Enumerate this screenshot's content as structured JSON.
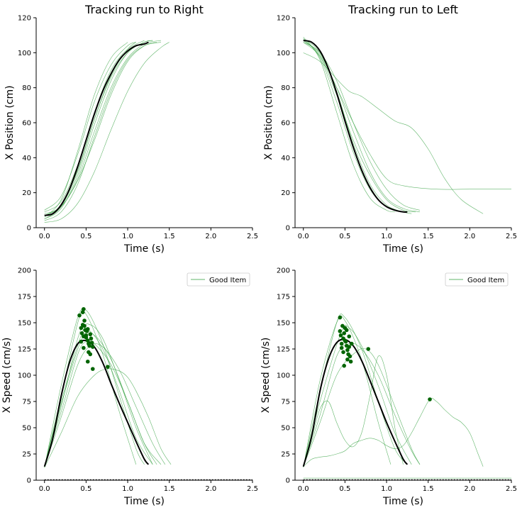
{
  "colors": {
    "trial_line": "#2e9e3a",
    "mean_line": "#000000",
    "peak_marker": "#006400",
    "baseline": "#000000"
  },
  "chart_data": [
    {
      "type": "line",
      "title": "Tracking run to Right",
      "xlabel": "Time (s)",
      "ylabel": "X Position (cm)",
      "xlim": [
        -0.1,
        2.5
      ],
      "ylim": [
        0,
        120
      ],
      "xticks": [
        "0.0",
        "0.5",
        "1.0",
        "1.5",
        "2.0",
        "2.5"
      ],
      "yticks": [
        "0",
        "20",
        "40",
        "60",
        "80",
        "100",
        "120"
      ],
      "grid": false,
      "legend": null,
      "series": [
        {
          "role": "trial",
          "x": [
            0.0,
            0.2,
            0.4,
            0.6,
            0.8,
            1.0,
            1.1
          ],
          "y": [
            5,
            12,
            32,
            62,
            87,
            102,
            106
          ]
        },
        {
          "role": "trial",
          "x": [
            0.0,
            0.2,
            0.4,
            0.6,
            0.8,
            1.0,
            1.2,
            1.3
          ],
          "y": [
            7,
            13,
            33,
            62,
            86,
            100,
            106,
            107
          ]
        },
        {
          "role": "trial",
          "x": [
            0.0,
            0.2,
            0.4,
            0.6,
            0.8,
            1.0,
            1.2,
            1.4
          ],
          "y": [
            8,
            12,
            28,
            55,
            80,
            97,
            105,
            107
          ]
        },
        {
          "role": "trial",
          "x": [
            0.0,
            0.2,
            0.4,
            0.6,
            0.8,
            1.0,
            1.1
          ],
          "y": [
            10,
            18,
            42,
            72,
            93,
            104,
            106
          ]
        },
        {
          "role": "trial",
          "x": [
            0.0,
            0.2,
            0.4,
            0.6,
            0.8,
            1.0
          ],
          "y": [
            6,
            16,
            44,
            76,
            97,
            106
          ]
        },
        {
          "role": "trial",
          "x": [
            0.0,
            0.2,
            0.4,
            0.6,
            0.8,
            1.0,
            1.2,
            1.4
          ],
          "y": [
            4,
            9,
            25,
            52,
            78,
            96,
            104,
            106
          ]
        },
        {
          "role": "trial",
          "x": [
            0.0,
            0.2,
            0.4,
            0.6,
            0.8,
            1.0,
            1.2,
            1.4,
            1.5
          ],
          "y": [
            3,
            5,
            14,
            32,
            56,
            78,
            94,
            103,
            106
          ]
        },
        {
          "role": "trial",
          "x": [
            0.0,
            0.2,
            0.4,
            0.6,
            0.8,
            1.0,
            1.2
          ],
          "y": [
            9,
            15,
            36,
            66,
            90,
            102,
            107
          ]
        },
        {
          "role": "trial",
          "x": [
            0.0,
            0.2,
            0.4,
            0.6,
            0.8,
            1.0,
            1.2,
            1.3
          ],
          "y": [
            5,
            11,
            30,
            59,
            84,
            100,
            106,
            107
          ]
        },
        {
          "role": "trial",
          "x": [
            0.0,
            0.2,
            0.4,
            0.6,
            0.8,
            1.0,
            1.2,
            1.35
          ],
          "y": [
            7,
            12,
            27,
            50,
            76,
            95,
            104,
            106
          ]
        },
        {
          "role": "mean",
          "x": [
            0.0,
            0.1,
            0.2,
            0.3,
            0.4,
            0.5,
            0.6,
            0.7,
            0.8,
            0.9,
            1.0,
            1.1,
            1.2,
            1.25
          ],
          "y": [
            7,
            8,
            13,
            22,
            35,
            50,
            65,
            78,
            88,
            96,
            101,
            104,
            105,
            106
          ]
        }
      ]
    },
    {
      "type": "line",
      "title": "Tracking run to Left",
      "xlabel": "Time (s)",
      "ylabel": "X Position (cm)",
      "xlim": [
        -0.1,
        2.5
      ],
      "ylim": [
        0,
        120
      ],
      "xticks": [
        "0.0",
        "0.5",
        "1.0",
        "1.5",
        "2.0",
        "2.5"
      ],
      "yticks": [
        "0",
        "20",
        "40",
        "60",
        "80",
        "100",
        "120"
      ],
      "grid": false,
      "legend": null,
      "series": [
        {
          "role": "trial",
          "x": [
            0.0,
            0.2,
            0.4,
            0.6,
            0.8,
            1.0,
            1.2,
            1.3
          ],
          "y": [
            108,
            100,
            78,
            48,
            25,
            13,
            9,
            8
          ]
        },
        {
          "role": "trial",
          "x": [
            0.0,
            0.2,
            0.4,
            0.6,
            0.8,
            1.0,
            1.2,
            1.4
          ],
          "y": [
            107,
            99,
            80,
            55,
            32,
            17,
            11,
            9
          ]
        },
        {
          "role": "trial",
          "x": [
            0.0,
            0.2,
            0.4,
            0.6,
            0.8,
            1.0,
            1.2
          ],
          "y": [
            108,
            97,
            72,
            43,
            22,
            12,
            9
          ]
        },
        {
          "role": "trial",
          "x": [
            0.0,
            0.2,
            0.4,
            0.6,
            0.8,
            1.0,
            1.2,
            1.4
          ],
          "y": [
            106,
            100,
            84,
            60,
            38,
            22,
            13,
            10
          ]
        },
        {
          "role": "trial",
          "x": [
            0.0,
            0.2,
            0.4,
            0.6,
            0.8,
            1.0,
            1.1
          ],
          "y": [
            109,
            96,
            66,
            36,
            17,
            10,
            9
          ]
        },
        {
          "role": "trial",
          "x": [
            0.0,
            0.2,
            0.4,
            0.6,
            0.8,
            1.0,
            1.2,
            1.35
          ],
          "y": [
            107,
            98,
            76,
            50,
            30,
            16,
            10,
            9
          ]
        },
        {
          "role": "trial",
          "x": [
            0.0,
            0.2,
            0.4,
            0.6,
            0.8,
            1.0,
            1.2,
            1.6,
            2.0,
            2.5
          ],
          "y": [
            106,
            98,
            80,
            60,
            42,
            28,
            24,
            22,
            22,
            22
          ]
        },
        {
          "role": "trial",
          "x": [
            0.0,
            0.2,
            0.4,
            0.55,
            0.7,
            0.9,
            1.1,
            1.3,
            1.5,
            1.7,
            1.9,
            2.16
          ],
          "y": [
            100,
            95,
            85,
            78,
            75,
            68,
            61,
            57,
            45,
            28,
            16,
            8
          ]
        },
        {
          "role": "mean",
          "x": [
            0.0,
            0.1,
            0.2,
            0.3,
            0.4,
            0.5,
            0.6,
            0.7,
            0.8,
            0.9,
            1.0,
            1.1,
            1.2,
            1.25
          ],
          "y": [
            107,
            106,
            101,
            91,
            77,
            61,
            46,
            33,
            23,
            16,
            12,
            10,
            9,
            9
          ]
        }
      ]
    },
    {
      "type": "line",
      "title": "",
      "xlabel": "Time (s)",
      "ylabel": "X Speed (cm/s)",
      "xlim": [
        -0.1,
        2.5
      ],
      "ylim": [
        0,
        200
      ],
      "xticks": [
        "0.0",
        "0.5",
        "1.0",
        "1.5",
        "2.0",
        "2.5"
      ],
      "yticks": [
        "0",
        "25",
        "50",
        "75",
        "100",
        "125",
        "150",
        "175",
        "200"
      ],
      "grid": false,
      "legend": {
        "placement": "top-right",
        "entries": [
          "Good Item"
        ]
      },
      "series": [
        {
          "role": "trial",
          "x": [
            0.0,
            0.2,
            0.4,
            0.5,
            0.7,
            0.9,
            1.1,
            1.2
          ],
          "y": [
            13,
            80,
            150,
            162,
            130,
            80,
            30,
            15
          ]
        },
        {
          "role": "trial",
          "x": [
            0.0,
            0.2,
            0.4,
            0.5,
            0.7,
            0.9,
            1.1,
            1.3
          ],
          "y": [
            13,
            70,
            135,
            145,
            125,
            85,
            40,
            15
          ]
        },
        {
          "role": "trial",
          "x": [
            0.0,
            0.2,
            0.4,
            0.5,
            0.6,
            0.8,
            1.0,
            1.2,
            1.4
          ],
          "y": [
            14,
            65,
            120,
            132,
            130,
            110,
            75,
            35,
            15
          ]
        },
        {
          "role": "trial",
          "x": [
            0.0,
            0.2,
            0.45,
            0.55,
            0.7,
            0.9,
            1.1,
            1.3
          ],
          "y": [
            13,
            75,
            140,
            148,
            135,
            95,
            50,
            15
          ]
        },
        {
          "role": "trial",
          "x": [
            0.0,
            0.2,
            0.4,
            0.5,
            0.7,
            0.9,
            1.1
          ],
          "y": [
            12,
            90,
            155,
            158,
            120,
            65,
            15
          ]
        },
        {
          "role": "trial",
          "x": [
            0.0,
            0.2,
            0.4,
            0.55,
            0.7,
            0.9,
            1.1,
            1.3,
            1.45
          ],
          "y": [
            13,
            60,
            110,
            128,
            127,
            105,
            70,
            35,
            15
          ]
        },
        {
          "role": "trial",
          "x": [
            0.0,
            0.2,
            0.4,
            0.6,
            0.75,
            0.9,
            1.0,
            1.1,
            1.25,
            1.4,
            1.52
          ],
          "y": [
            12,
            45,
            80,
            100,
            106,
            104,
            98,
            85,
            60,
            30,
            15
          ]
        },
        {
          "role": "trial",
          "x": [
            0.0,
            0.2,
            0.45,
            0.6,
            0.8,
            1.0,
            1.2,
            1.35
          ],
          "y": [
            14,
            72,
            135,
            138,
            115,
            75,
            35,
            15
          ]
        },
        {
          "role": "mean",
          "x": [
            0.0,
            0.1,
            0.2,
            0.3,
            0.4,
            0.5,
            0.6,
            0.7,
            0.8,
            0.9,
            1.0,
            1.1,
            1.2,
            1.25
          ],
          "y": [
            13,
            40,
            80,
            112,
            130,
            133,
            127,
            112,
            92,
            73,
            55,
            37,
            20,
            15
          ]
        }
      ],
      "peaks": {
        "x": [
          0.42,
          0.44,
          0.45,
          0.46,
          0.47,
          0.48,
          0.49,
          0.5,
          0.51,
          0.52,
          0.53,
          0.54,
          0.46,
          0.48,
          0.5,
          0.52,
          0.44,
          0.47,
          0.53,
          0.55,
          0.56,
          0.57,
          0.58,
          0.52,
          0.55,
          0.58,
          0.76,
          0.47
        ],
        "y": [
          157,
          145,
          140,
          148,
          137,
          152,
          143,
          138,
          142,
          133,
          130,
          128,
          160,
          147,
          136,
          144,
          132,
          126,
          122,
          139,
          135,
          131,
          127,
          113,
          120,
          106,
          108,
          163
        ]
      }
    },
    {
      "type": "line",
      "title": "",
      "xlabel": "Time (s)",
      "ylabel": "X Speed (cm/s)",
      "xlim": [
        -0.1,
        2.5
      ],
      "ylim": [
        0,
        200
      ],
      "xticks": [
        "0.0",
        "0.5",
        "1.0",
        "1.5",
        "2.0",
        "2.5"
      ],
      "yticks": [
        "0",
        "25",
        "50",
        "75",
        "100",
        "125",
        "150",
        "175",
        "200"
      ],
      "grid": false,
      "legend": {
        "placement": "top-right",
        "entries": [
          "Good Item"
        ]
      },
      "series": [
        {
          "role": "trial",
          "x": [
            0.0,
            0.2,
            0.4,
            0.5,
            0.7,
            0.9,
            1.1,
            1.25
          ],
          "y": [
            13,
            85,
            150,
            155,
            125,
            75,
            30,
            15
          ]
        },
        {
          "role": "trial",
          "x": [
            0.0,
            0.2,
            0.45,
            0.55,
            0.7,
            0.9,
            1.1,
            1.3
          ],
          "y": [
            13,
            75,
            140,
            145,
            128,
            90,
            45,
            15
          ]
        },
        {
          "role": "trial",
          "x": [
            0.0,
            0.2,
            0.4,
            0.55,
            0.7,
            0.9,
            1.1,
            1.3,
            1.4
          ],
          "y": [
            13,
            62,
            118,
            130,
            125,
            100,
            62,
            28,
            15
          ]
        },
        {
          "role": "trial",
          "x": [
            0.0,
            0.2,
            0.4,
            0.5,
            0.7,
            0.9,
            1.05
          ],
          "y": [
            12,
            95,
            150,
            152,
            115,
            55,
            15
          ]
        },
        {
          "role": "trial",
          "x": [
            0.0,
            0.1,
            0.2,
            0.3,
            0.4,
            0.5,
            0.6,
            0.7,
            0.8,
            0.9,
            1.0,
            1.1,
            1.2,
            1.3,
            1.4,
            1.52,
            1.6,
            1.7,
            1.8,
            1.9,
            2.0,
            2.1,
            2.16
          ],
          "y": [
            13,
            20,
            22,
            23,
            25,
            28,
            35,
            38,
            40,
            38,
            33,
            30,
            33,
            45,
            60,
            77,
            75,
            67,
            60,
            55,
            45,
            25,
            13
          ]
        },
        {
          "role": "trial",
          "x": [
            0.0,
            0.1,
            0.2,
            0.3,
            0.4,
            0.5,
            0.6,
            0.7,
            0.8,
            0.9,
            1.0,
            1.1,
            1.2
          ],
          "y": [
            13,
            40,
            68,
            75,
            55,
            38,
            32,
            45,
            80,
            118,
            100,
            50,
            15
          ]
        },
        {
          "role": "trial",
          "x": [
            0.0,
            0.2,
            0.4,
            0.6,
            0.75,
            0.9,
            1.1,
            1.3,
            1.4
          ],
          "y": [
            13,
            55,
            100,
            120,
            125,
            110,
            70,
            30,
            15
          ]
        },
        {
          "role": "trial",
          "x": [
            0.0,
            0.5,
            1.0,
            1.5,
            2.0,
            2.5
          ],
          "y": [
            2,
            2,
            2,
            2,
            2,
            2
          ]
        },
        {
          "role": "mean",
          "x": [
            0.0,
            0.1,
            0.2,
            0.3,
            0.4,
            0.5,
            0.6,
            0.7,
            0.8,
            0.9,
            1.0,
            1.1,
            1.2,
            1.25
          ],
          "y": [
            13,
            42,
            85,
            115,
            131,
            134,
            128,
            114,
            95,
            75,
            55,
            37,
            20,
            15
          ]
        }
      ],
      "peaks": {
        "x": [
          0.44,
          0.45,
          0.46,
          0.47,
          0.48,
          0.49,
          0.5,
          0.51,
          0.52,
          0.53,
          0.54,
          0.55,
          0.46,
          0.48,
          0.5,
          0.52,
          0.56,
          0.57,
          0.58,
          0.49,
          0.53,
          0.55,
          0.78,
          1.52,
          0.44
        ],
        "y": [
          142,
          138,
          130,
          147,
          135,
          140,
          145,
          132,
          128,
          124,
          120,
          137,
          126,
          122,
          133,
          143,
          118,
          113,
          130,
          109,
          115,
          127,
          125,
          77,
          155
        ]
      }
    }
  ]
}
